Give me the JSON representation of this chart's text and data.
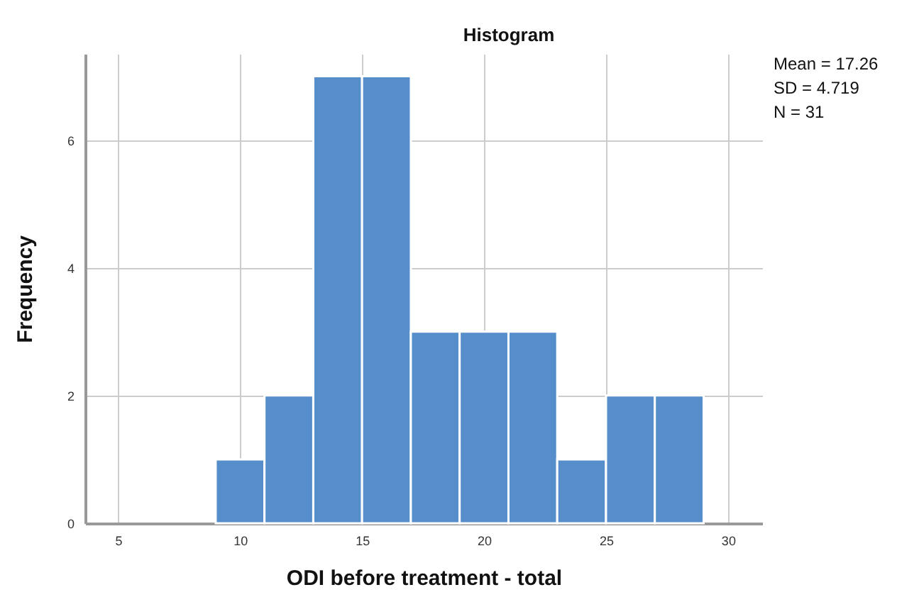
{
  "chart_data": {
    "type": "histogram",
    "title": "Histogram",
    "xlabel": "ODI before treatment - total",
    "ylabel": "Frequency",
    "bins": [
      9,
      11,
      13,
      15,
      17,
      19,
      21,
      23,
      25,
      27,
      29
    ],
    "values": [
      1,
      2,
      7,
      7,
      3,
      3,
      3,
      1,
      2,
      2
    ],
    "color": "#558ecb",
    "xlim": [
      3.65,
      31.4
    ],
    "xticks": [
      5,
      10,
      15,
      20,
      25,
      30
    ],
    "ylim": [
      0,
      7.35
    ],
    "yticks": [
      0,
      2,
      4,
      6
    ],
    "grid": true,
    "annotations": [
      "Mean = 17.26",
      "SD = 4.719",
      "N = 31"
    ]
  }
}
